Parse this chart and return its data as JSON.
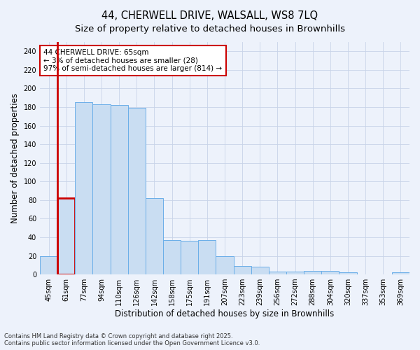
{
  "title_line1": "44, CHERWELL DRIVE, WALSALL, WS8 7LQ",
  "title_line2": "Size of property relative to detached houses in Brownhills",
  "xlabel": "Distribution of detached houses by size in Brownhills",
  "ylabel": "Number of detached properties",
  "categories": [
    "45sqm",
    "61sqm",
    "77sqm",
    "94sqm",
    "110sqm",
    "126sqm",
    "142sqm",
    "158sqm",
    "175sqm",
    "191sqm",
    "207sqm",
    "223sqm",
    "239sqm",
    "256sqm",
    "272sqm",
    "288sqm",
    "304sqm",
    "320sqm",
    "337sqm",
    "353sqm",
    "369sqm"
  ],
  "values": [
    20,
    82,
    185,
    183,
    182,
    179,
    82,
    37,
    36,
    37,
    20,
    9,
    8,
    3,
    3,
    4,
    4,
    2,
    0,
    0,
    2
  ],
  "bar_color": "#c9ddf2",
  "bar_edge_color": "#6aaee8",
  "highlight_bar_index": 1,
  "highlight_bar_edge_color": "#cc0000",
  "annotation_box_text": "44 CHERWELL DRIVE: 65sqm\n← 3% of detached houses are smaller (28)\n97% of semi-detached houses are larger (814) →",
  "annotation_box_edge_color": "#cc0000",
  "annotation_box_bg_color": "#ffffff",
  "ylim": [
    0,
    250
  ],
  "yticks": [
    0,
    20,
    40,
    60,
    80,
    100,
    120,
    140,
    160,
    180,
    200,
    220,
    240
  ],
  "grid_color": "#c8d4e8",
  "bg_color": "#edf2fb",
  "footer_text": "Contains HM Land Registry data © Crown copyright and database right 2025.\nContains public sector information licensed under the Open Government Licence v3.0.",
  "title_fontsize": 10.5,
  "subtitle_fontsize": 9.5,
  "axis_label_fontsize": 8.5,
  "tick_fontsize": 7,
  "annotation_fontsize": 7.5,
  "footer_fontsize": 6
}
